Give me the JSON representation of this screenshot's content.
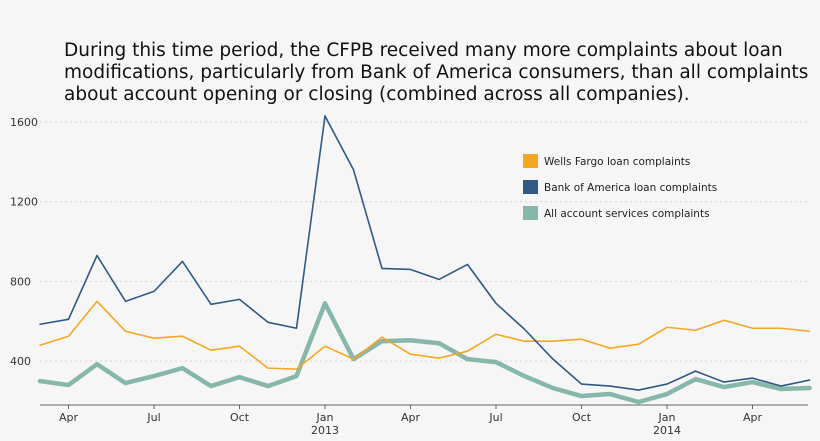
{
  "chart_data": {
    "type": "line",
    "title": "During this time period, the CFPB received many more complaints about loan modifications, particularly from Bank of America consumers, than all complaints about account opening or closing (combined across all companies).",
    "xlabel": "",
    "ylabel": "",
    "x": [
      "2012-03",
      "2012-04",
      "2012-05",
      "2012-06",
      "2012-07",
      "2012-08",
      "2012-09",
      "2012-10",
      "2012-11",
      "2012-12",
      "2013-01",
      "2013-02",
      "2013-03",
      "2013-04",
      "2013-05",
      "2013-06",
      "2013-07",
      "2013-08",
      "2013-09",
      "2013-10",
      "2013-11",
      "2013-12",
      "2014-01",
      "2014-02",
      "2014-03",
      "2014-04",
      "2014-05",
      "2014-06"
    ],
    "x_ticks": [
      {
        "x": "2012-04",
        "label": "Apr",
        "year": ""
      },
      {
        "x": "2012-07",
        "label": "Jul",
        "year": ""
      },
      {
        "x": "2012-10",
        "label": "Oct",
        "year": ""
      },
      {
        "x": "2013-01",
        "label": "Jan",
        "year": "2013"
      },
      {
        "x": "2013-04",
        "label": "Apr",
        "year": ""
      },
      {
        "x": "2013-07",
        "label": "Jul",
        "year": ""
      },
      {
        "x": "2013-10",
        "label": "Oct",
        "year": ""
      },
      {
        "x": "2014-01",
        "label": "Jan",
        "year": "2014"
      },
      {
        "x": "2014-04",
        "label": "Apr",
        "year": ""
      }
    ],
    "y_ticks": [
      400,
      800,
      1200,
      1600
    ],
    "ylim": [
      180,
      1660
    ],
    "grid": true,
    "legend_position": "top-right",
    "series": [
      {
        "name": "Wells Fargo loan complaints",
        "color": "#f5a623",
        "values": [
          480,
          525,
          700,
          550,
          515,
          525,
          455,
          475,
          365,
          360,
          475,
          410,
          520,
          435,
          415,
          450,
          535,
          500,
          500,
          510,
          465,
          485,
          570,
          555,
          605,
          565,
          565,
          550
        ]
      },
      {
        "name": "Bank of America loan complaints",
        "color": "#2f5986",
        "values": [
          585,
          610,
          930,
          700,
          750,
          900,
          685,
          710,
          595,
          565,
          1630,
          1360,
          865,
          860,
          810,
          885,
          690,
          560,
          410,
          285,
          275,
          255,
          285,
          350,
          295,
          315,
          275,
          305
        ]
      },
      {
        "name": "All account services complaints",
        "color": "#86b7aa",
        "values": [
          300,
          280,
          385,
          290,
          325,
          365,
          275,
          320,
          275,
          325,
          690,
          410,
          500,
          505,
          490,
          410,
          395,
          325,
          265,
          225,
          235,
          195,
          235,
          310,
          270,
          295,
          260,
          265
        ]
      }
    ]
  }
}
